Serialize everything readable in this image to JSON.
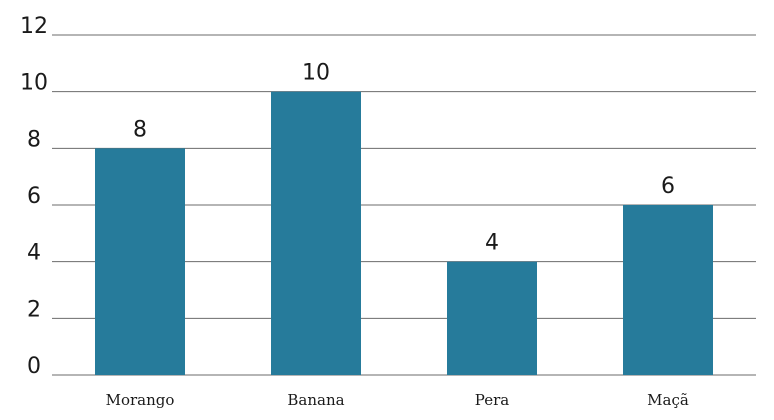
{
  "chart_data": {
    "type": "bar",
    "categories": [
      "Morango",
      "Banana",
      "Pera",
      "Maçã"
    ],
    "values": [
      8,
      10,
      4,
      6
    ],
    "data_labels": [
      "8",
      "10",
      "4",
      "6"
    ],
    "yticks": [
      0,
      2,
      4,
      6,
      8,
      10,
      12
    ],
    "ylim": [
      0,
      12
    ],
    "grid": true,
    "legend": "none",
    "bar_color": "#267b9b",
    "grid_color": "#6b6b6b"
  }
}
